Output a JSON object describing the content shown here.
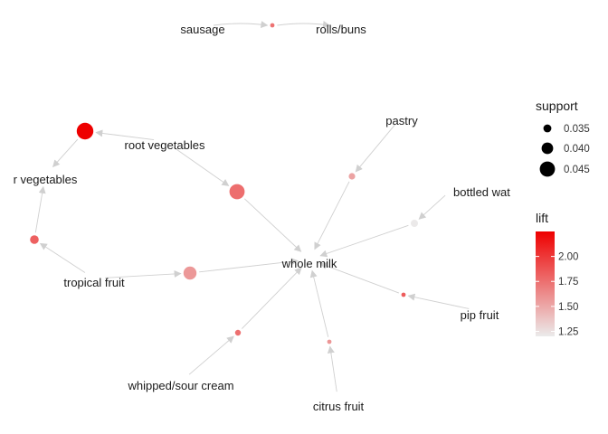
{
  "chart_data": {
    "type": "network",
    "title": "",
    "item_labels": [
      "sausage",
      "rolls/buns",
      "root vegetables",
      "r vegetables",
      "pastry",
      "bottled wat",
      "whole milk",
      "tropical fruit",
      "pip fruit",
      "whipped/sour cream",
      "citrus fruit"
    ],
    "rules": [
      {
        "from": "sausage",
        "to": "rolls/buns",
        "support": 0.03,
        "lift": 1.74
      },
      {
        "from": "root vegetables",
        "to": "r vegetables",
        "support": 0.047,
        "lift": 2.25
      },
      {
        "from": "root vegetables",
        "to": "whole milk",
        "support": 0.045,
        "lift": 1.76
      },
      {
        "from": "tropical fruit",
        "to": "r vegetables",
        "support": 0.036,
        "lift": 1.82
      },
      {
        "from": "tropical fruit",
        "to": "whole milk",
        "support": 0.042,
        "lift": 1.57
      },
      {
        "from": "pastry",
        "to": "whole milk",
        "support": 0.033,
        "lift": 1.52
      },
      {
        "from": "bottled wat",
        "to": "whole milk",
        "support": 0.034,
        "lift": 1.21
      },
      {
        "from": "pip fruit",
        "to": "whole milk",
        "support": 0.03,
        "lift": 1.84
      },
      {
        "from": "whipped/sour cream",
        "to": "whole milk",
        "support": 0.032,
        "lift": 1.75
      },
      {
        "from": "citrus fruit",
        "to": "whole milk",
        "support": 0.03,
        "lift": 1.58
      }
    ],
    "legend": {
      "size_title": "support",
      "size_breaks": [
        0.035,
        0.04,
        0.045
      ],
      "size_labels": [
        "0.035",
        "0.040",
        "0.045"
      ],
      "color_title": "lift",
      "color_breaks": [
        1.25,
        1.5,
        1.75,
        2.0
      ],
      "color_labels": [
        "1.25",
        "1.50",
        "1.75",
        "2.00"
      ],
      "color_range": [
        1.2,
        2.25
      ],
      "color_low": "#ebebeb",
      "color_high": "#ee0000",
      "position": "right"
    }
  }
}
